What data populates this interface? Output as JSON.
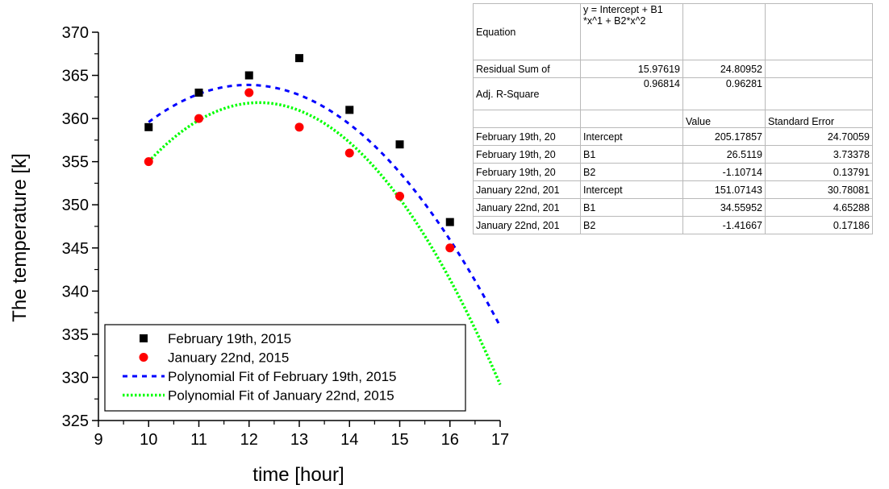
{
  "chart_data": {
    "type": "scatter",
    "xlabel": "time [hour]",
    "ylabel": "The temperature [k]",
    "xlim": [
      9,
      17
    ],
    "ylim": [
      325,
      370
    ],
    "xticks": [
      "9",
      "10",
      "11",
      "12",
      "13",
      "14",
      "15",
      "16",
      "17"
    ],
    "yticks": [
      "325",
      "330",
      "335",
      "340",
      "345",
      "350",
      "355",
      "360",
      "365",
      "370"
    ],
    "legend_position": "bottom-left",
    "series": [
      {
        "name": "February 19th, 2015",
        "kind": "scatter",
        "marker": "square",
        "color": "#000000",
        "x": [
          10,
          11,
          12,
          13,
          14,
          15,
          16
        ],
        "y": [
          359,
          363,
          365,
          367,
          361,
          357,
          348
        ]
      },
      {
        "name": "January 22nd, 2015",
        "kind": "scatter",
        "marker": "circle",
        "color": "#ff0000",
        "x": [
          10,
          11,
          12,
          13,
          14,
          15,
          16
        ],
        "y": [
          355,
          360,
          363,
          359,
          356,
          351,
          345
        ]
      },
      {
        "name": "Polynomial Fit of  February 19th, 2015",
        "kind": "line",
        "style": "dashed",
        "color": "#0000ff",
        "coefficients": [
          205.17857,
          26.5119,
          -1.10714
        ],
        "x_range": [
          10,
          17
        ]
      },
      {
        "name": "Polynomial Fit of  January 22nd, 2015",
        "kind": "line",
        "style": "dotted",
        "color": "#00ff00",
        "coefficients": [
          151.07143,
          34.55952,
          -1.41667
        ],
        "x_range": [
          10,
          17
        ]
      }
    ]
  },
  "fit_table": {
    "rows": [
      [
        "Equation",
        "y = Intercept + B1\n*x^1 + B2*x^2",
        "",
        ""
      ],
      [
        "Residual Sum of",
        "15.97619",
        "24.80952",
        ""
      ],
      [
        "Adj. R-Square",
        "0.96814",
        "0.96281",
        ""
      ],
      [
        "",
        "",
        "Value",
        "Standard Error"
      ],
      [
        "February 19th, 20",
        "Intercept",
        "205.17857",
        "24.70059"
      ],
      [
        "February 19th, 20",
        "B1",
        "26.5119",
        "3.73378"
      ],
      [
        "February 19th, 20",
        "B2",
        "-1.10714",
        "0.13791"
      ],
      [
        "January 22nd, 201",
        "Intercept",
        "151.07143",
        "30.78081"
      ],
      [
        "January 22nd, 201",
        "B1",
        "34.55952",
        "4.65288"
      ],
      [
        "January 22nd, 201",
        "B2",
        "-1.41667",
        "0.17186"
      ]
    ]
  }
}
